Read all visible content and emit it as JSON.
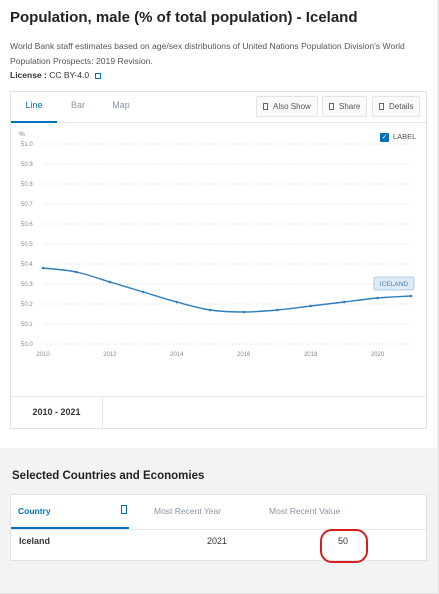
{
  "header": {
    "title": "Population, male (% of total population) - Iceland",
    "description": "World Bank staff estimates based on age/sex distributions of United Nations Population Division's World Population Prospects: 2019 Revision.",
    "license_label": "License : ",
    "license_value": "CC BY-4.0"
  },
  "tabs": [
    {
      "label": "Line",
      "active": true
    },
    {
      "label": "Bar",
      "active": false
    },
    {
      "label": "Map",
      "active": false
    }
  ],
  "toolbar": {
    "also_show": "Also Show",
    "share": "Share",
    "details": "Details"
  },
  "label_checkbox": {
    "label": "LABEL",
    "checked": true
  },
  "chart_data": {
    "type": "line",
    "ylabel": "%",
    "ylim": [
      50.0,
      51.0
    ],
    "y_ticks": [
      "51.0",
      "50.9",
      "50.8",
      "50.7",
      "50.6",
      "50.5",
      "50.4",
      "50.3",
      "50.2",
      "50.1",
      "50.0"
    ],
    "x_ticks": [
      "2010",
      "2012",
      "2014",
      "2016",
      "2018",
      "2020"
    ],
    "grid": true,
    "series": [
      {
        "name": "ICELAND",
        "color": "#2f7ebd",
        "x": [
          2010,
          2011,
          2012,
          2013,
          2014,
          2015,
          2016,
          2017,
          2018,
          2019,
          2020,
          2021
        ],
        "values": [
          50.38,
          50.36,
          50.31,
          50.26,
          50.21,
          50.17,
          50.16,
          50.17,
          50.19,
          50.21,
          50.23,
          50.24
        ]
      }
    ]
  },
  "range": "2010 - 2021",
  "countries_section": {
    "title": "Selected Countries and Economies",
    "columns": [
      "Country",
      "Most Recent Year",
      "Most Recent Value"
    ],
    "rows": [
      {
        "country": "Iceland",
        "year": "2021",
        "value": "50"
      }
    ]
  },
  "colors": {
    "accent": "#0071bc",
    "line": "#2f7ebd",
    "highlight": "#d71d1d"
  }
}
